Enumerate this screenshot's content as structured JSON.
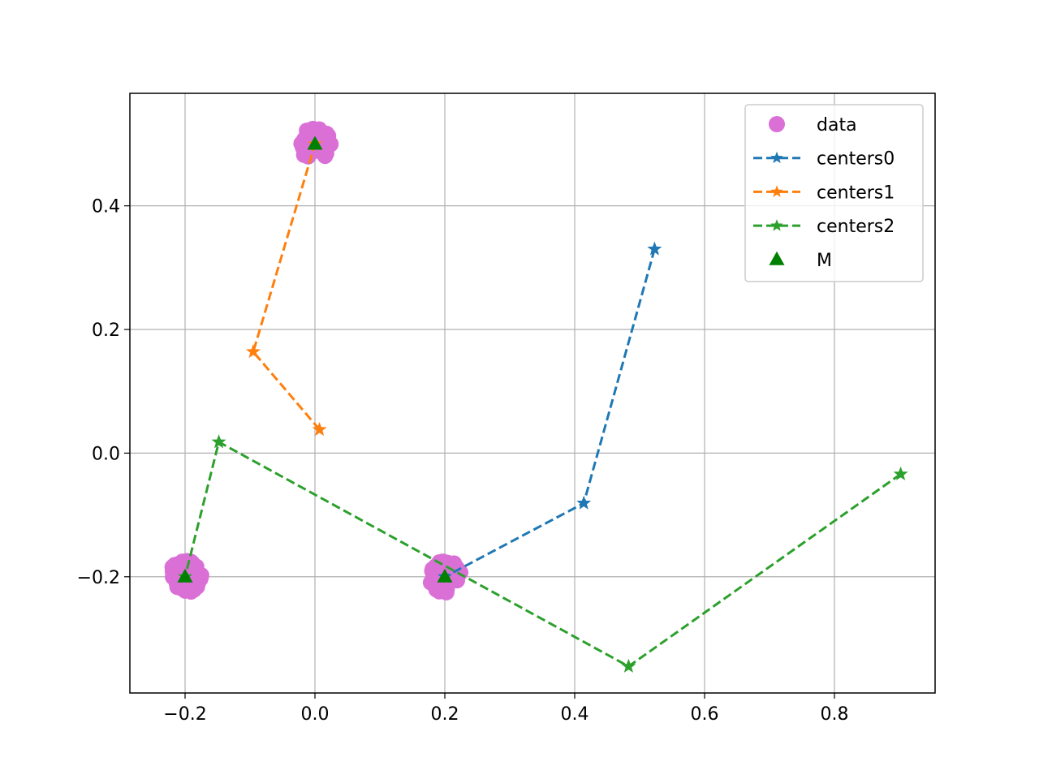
{
  "chart_data": {
    "type": "scatter",
    "title": "",
    "xlabel": "",
    "ylabel": "",
    "xlim": [
      -0.285,
      0.955
    ],
    "ylim": [
      -0.388,
      0.582
    ],
    "xticks": [
      -0.2,
      0.0,
      0.2,
      0.4,
      0.6,
      0.8
    ],
    "xtick_labels": [
      "−0.2",
      "0.0",
      "0.2",
      "0.4",
      "0.6",
      "0.8"
    ],
    "yticks": [
      -0.2,
      0.0,
      0.2,
      0.4
    ],
    "ytick_labels": [
      "−0.2",
      "0.0",
      "0.2",
      "0.4"
    ],
    "grid": true,
    "legend_position": "top-right",
    "series": [
      {
        "name": "data",
        "kind": "points",
        "color": "#da70d6",
        "clusters": [
          {
            "center": [
              0.0,
              0.5
            ]
          },
          {
            "center": [
              -0.2,
              -0.2
            ]
          },
          {
            "center": [
              0.2,
              -0.2
            ]
          }
        ]
      },
      {
        "name": "centers0",
        "kind": "dashed-line-stars",
        "color": "#1f77b4",
        "points": [
          [
            0.523,
            0.33
          ],
          [
            0.414,
            -0.081
          ],
          [
            0.2,
            -0.2
          ]
        ]
      },
      {
        "name": "centers1",
        "kind": "dashed-line-stars",
        "color": "#ff7f0e",
        "points": [
          [
            0.007,
            0.038
          ],
          [
            -0.095,
            0.164
          ],
          [
            0.0,
            0.5
          ]
        ]
      },
      {
        "name": "centers2",
        "kind": "dashed-line-stars",
        "color": "#2ca02c",
        "points": [
          [
            0.902,
            -0.034
          ],
          [
            0.483,
            -0.345
          ],
          [
            -0.148,
            0.018
          ],
          [
            -0.2,
            -0.2
          ]
        ]
      },
      {
        "name": "M",
        "kind": "triangles",
        "color": "#008000",
        "points": [
          [
            0.0,
            0.5
          ],
          [
            -0.2,
            -0.2
          ],
          [
            0.2,
            -0.2
          ]
        ]
      }
    ]
  }
}
